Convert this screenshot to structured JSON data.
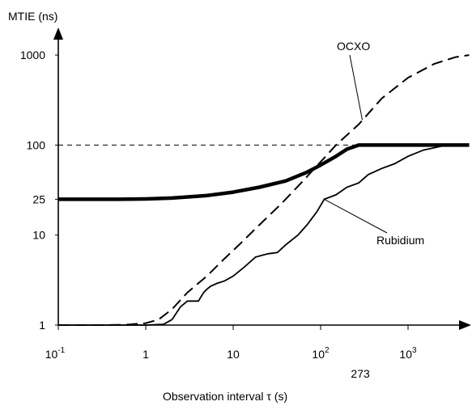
{
  "chart_data": {
    "type": "line",
    "title": "",
    "ylabel": "MTIE (ns)",
    "xlabel_prefix": "Observation interval ",
    "xlabel_symbol": "τ",
    "xlabel_suffix": " (s)",
    "x_scale": "log",
    "y_scale": "log",
    "xlim": [
      0.1,
      5000
    ],
    "ylim": [
      1,
      1000
    ],
    "x_ticks": [
      {
        "value": 0.1,
        "base": "10",
        "exp": "-1"
      },
      {
        "value": 1,
        "base": "1",
        "exp": ""
      },
      {
        "value": 10,
        "base": "10",
        "exp": ""
      },
      {
        "value": 100,
        "base": "10",
        "exp": "2"
      },
      {
        "value": 1000,
        "base": "10",
        "exp": "3"
      }
    ],
    "x_extra_tick": {
      "value": 273,
      "label": "273"
    },
    "y_ticks": [
      {
        "value": 1,
        "label": "1"
      },
      {
        "value": 10,
        "label": "10"
      },
      {
        "value": 25,
        "label": "25"
      },
      {
        "value": 100,
        "label": "100"
      },
      {
        "value": 1000,
        "label": "1000"
      }
    ],
    "reference_line": {
      "y": 100,
      "style": "dashed"
    },
    "series": [
      {
        "name": "OCXO",
        "style": "dashed",
        "color": "#000000",
        "points": [
          [
            0.1,
            1
          ],
          [
            0.3,
            1
          ],
          [
            0.6,
            1.01
          ],
          [
            1,
            1.05
          ],
          [
            1.4,
            1.15
          ],
          [
            2,
            1.5
          ],
          [
            3,
            2.3
          ],
          [
            5,
            3.5
          ],
          [
            8,
            5.5
          ],
          [
            12,
            8
          ],
          [
            20,
            13
          ],
          [
            35,
            22
          ],
          [
            60,
            38
          ],
          [
            100,
            65
          ],
          [
            150,
            100
          ],
          [
            273,
            170
          ],
          [
            500,
            330
          ],
          [
            1000,
            560
          ],
          [
            2000,
            800
          ],
          [
            3500,
            950
          ],
          [
            5000,
            1000
          ]
        ]
      },
      {
        "name": "Rubidium",
        "style": "solid",
        "color": "#000000",
        "points": [
          [
            0.1,
            1
          ],
          [
            1,
            1
          ],
          [
            1.6,
            1.02
          ],
          [
            2,
            1.15
          ],
          [
            2.5,
            1.6
          ],
          [
            3,
            1.85
          ],
          [
            3.5,
            1.85
          ],
          [
            4,
            1.85
          ],
          [
            4.6,
            2.3
          ],
          [
            5,
            2.5
          ],
          [
            5.5,
            2.7
          ],
          [
            6.5,
            2.9
          ],
          [
            8,
            3.1
          ],
          [
            10,
            3.5
          ],
          [
            13,
            4.3
          ],
          [
            18,
            5.7
          ],
          [
            25,
            6.2
          ],
          [
            32,
            6.4
          ],
          [
            40,
            7.8
          ],
          [
            55,
            10
          ],
          [
            70,
            13
          ],
          [
            90,
            18
          ],
          [
            110,
            25
          ],
          [
            150,
            28
          ],
          [
            200,
            34
          ],
          [
            273,
            38
          ],
          [
            350,
            47
          ],
          [
            500,
            55
          ],
          [
            700,
            62
          ],
          [
            1000,
            75
          ],
          [
            1500,
            88
          ],
          [
            2500,
            98
          ],
          [
            5000,
            100
          ]
        ]
      },
      {
        "name": "",
        "style": "bold",
        "color": "#000000",
        "points": [
          [
            0.1,
            25
          ],
          [
            0.5,
            25
          ],
          [
            1,
            25.2
          ],
          [
            2,
            25.8
          ],
          [
            5,
            27.5
          ],
          [
            10,
            30
          ],
          [
            20,
            34
          ],
          [
            40,
            40
          ],
          [
            70,
            50
          ],
          [
            100,
            60
          ],
          [
            150,
            75
          ],
          [
            200,
            90
          ],
          [
            273,
            100
          ],
          [
            1000,
            100
          ],
          [
            5000,
            100
          ]
        ]
      }
    ],
    "annotations": [
      {
        "text": "OCXO",
        "target_series": 0
      },
      {
        "text": "Rubidium",
        "target_series": 1
      }
    ]
  }
}
